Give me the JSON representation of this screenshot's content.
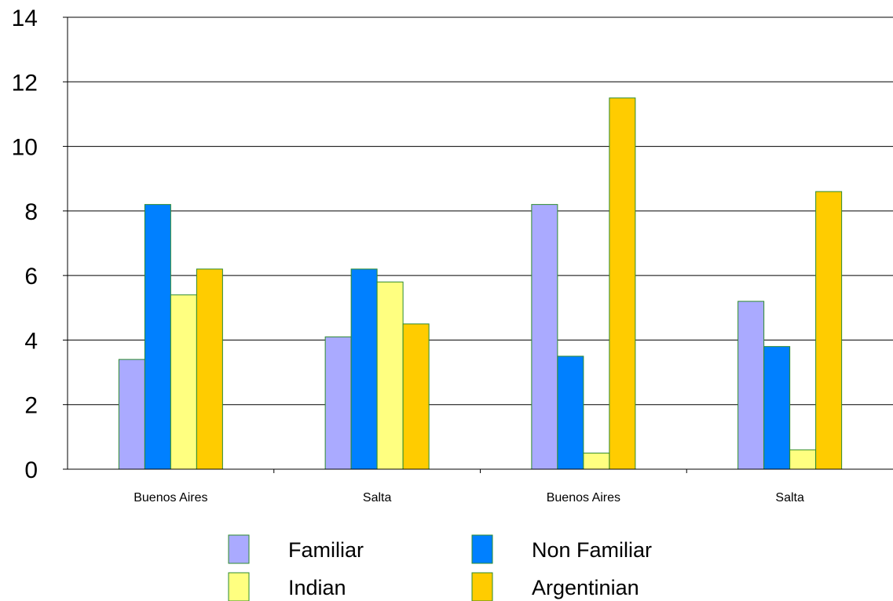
{
  "chart_data": {
    "type": "bar",
    "title": "",
    "xlabel": "",
    "ylabel": "",
    "categories": [
      "Buenos Aires",
      "Salta",
      "Buenos Aires",
      "Salta"
    ],
    "series": [
      {
        "name": "Familiar",
        "color": "#aaaaff",
        "values": [
          3.4,
          4.1,
          8.2,
          5.2
        ]
      },
      {
        "name": "Non Familiar",
        "color": "#0080ff",
        "values": [
          8.2,
          6.2,
          3.5,
          3.8
        ]
      },
      {
        "name": "Indian",
        "color": "#ffff80",
        "values": [
          5.4,
          5.8,
          0.5,
          0.6
        ]
      },
      {
        "name": "Argentinian",
        "color": "#ffcc00",
        "values": [
          6.2,
          4.5,
          11.5,
          8.6
        ]
      }
    ],
    "ylim": [
      0,
      14
    ],
    "yticks": [
      0,
      2,
      4,
      6,
      8,
      10,
      12,
      14
    ],
    "grid": true,
    "legend_position": "bottom",
    "bar_outline_color": "#2e8b2e"
  }
}
